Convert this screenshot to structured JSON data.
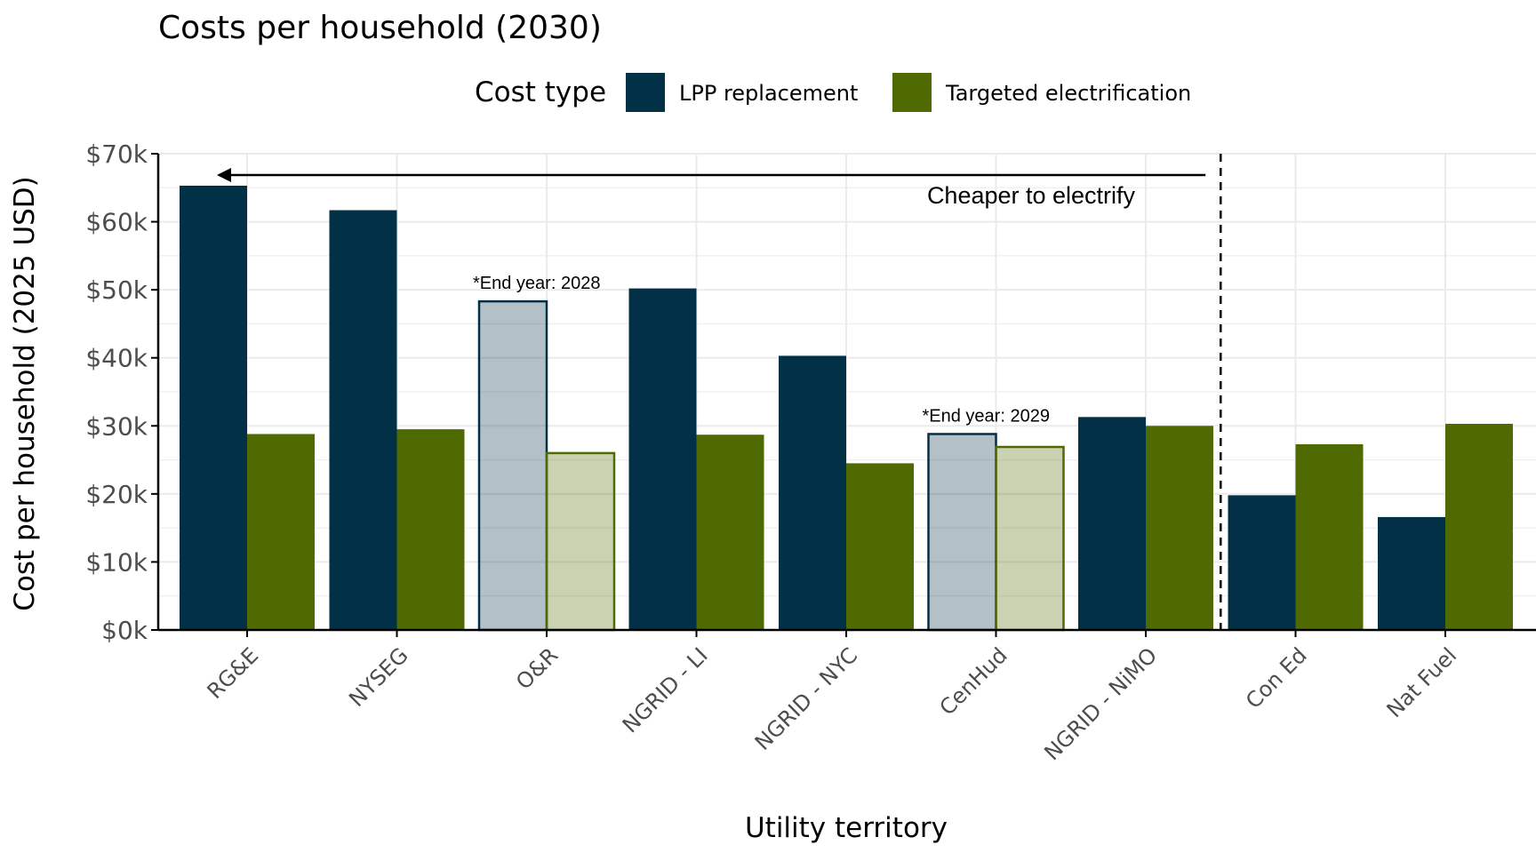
{
  "chart_data": {
    "type": "bar",
    "title": "Costs per household (2030)",
    "xlabel": "Utility territory",
    "ylabel": "Cost per household (2025 USD)",
    "ylim": [
      0,
      70000
    ],
    "y_ticks": [
      0,
      10000,
      20000,
      30000,
      40000,
      50000,
      60000,
      70000
    ],
    "y_tick_labels": [
      "$0k",
      "$10k",
      "$20k",
      "$30k",
      "$40k",
      "$50k",
      "$60k",
      "$70k"
    ],
    "grid": true,
    "legend": {
      "title": "Cost type",
      "position": "top"
    },
    "categories": [
      "RG&E",
      "NYSEG",
      "O&R",
      "NGRID - LI",
      "NGRID - NYC",
      "CenHud",
      "NGRID - NiMO",
      "Con Ed",
      "Nat Fuel"
    ],
    "series": [
      {
        "name": "LPP replacement",
        "color": "#023047",
        "values": [
          65300,
          61700,
          48300,
          50200,
          40300,
          28800,
          31300,
          19800,
          16600
        ]
      },
      {
        "name": "Targeted electrification",
        "color": "#4f6a00",
        "values": [
          28800,
          29500,
          26000,
          28700,
          24500,
          26900,
          30000,
          27300,
          30300
        ]
      }
    ],
    "faded_categories": [
      "O&R",
      "CenHud"
    ],
    "annotations": [
      {
        "text": "*End year: 2028",
        "category": "O&R"
      },
      {
        "text": "*End year: 2029",
        "category": "CenHud"
      }
    ],
    "divider_between": [
      "NGRID - NiMO",
      "Con Ed"
    ],
    "arrow": {
      "text": "Cheaper to electrify",
      "direction": "left"
    }
  }
}
